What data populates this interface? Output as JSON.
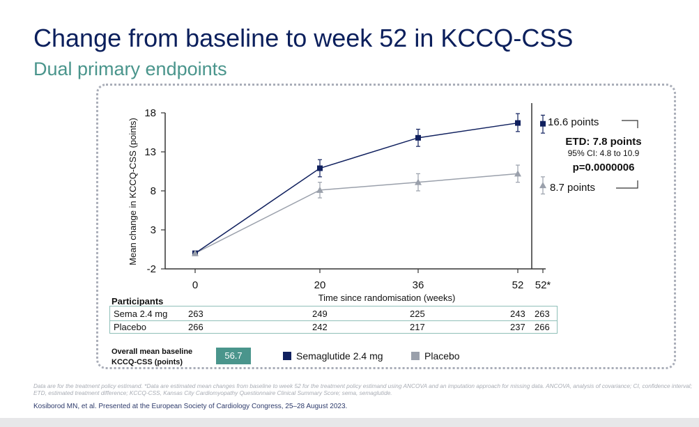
{
  "title": "Change from baseline to week 52 in KCCQ-CSS",
  "subtitle": "Dual primary endpoints",
  "chart_data": {
    "type": "line",
    "title": "Change from baseline to week 52 in KCCQ-CSS",
    "xlabel": "Time since randomisation (weeks)",
    "ylabel": "Mean change in KCCQ-CSS (points)",
    "x_ticks": [
      "0",
      "20",
      "36",
      "52",
      "52*"
    ],
    "y_ticks": [
      -2,
      3,
      8,
      13,
      18
    ],
    "ylim": [
      -2,
      18
    ],
    "x": [
      0,
      20,
      36,
      52
    ],
    "series": [
      {
        "name": "Semaglutide 2.4 mg",
        "color": "#10205e",
        "marker": "square",
        "values": [
          0,
          10.9,
          14.8,
          16.7
        ],
        "ci_low": [
          0,
          9.8,
          13.7,
          15.6
        ],
        "ci_high": [
          0,
          12.0,
          15.9,
          17.9
        ]
      },
      {
        "name": "Placebo",
        "color": "#9aa0ab",
        "marker": "triangle",
        "values": [
          0,
          8.1,
          9.1,
          10.2
        ],
        "ci_low": [
          0,
          7.1,
          8.0,
          9.1
        ],
        "ci_high": [
          0,
          9.1,
          10.2,
          11.3
        ]
      }
    ],
    "estimated_week52": [
      {
        "name": "Semaglutide 2.4 mg",
        "value": 16.6,
        "ci_low": 15.4,
        "ci_high": 17.7,
        "label": "16.6 points"
      },
      {
        "name": "Placebo",
        "value": 8.7,
        "ci_low": 7.6,
        "ci_high": 9.8,
        "label": "8.7 points"
      }
    ],
    "etd": {
      "label": "ETD: 7.8 points",
      "ci": "95% CI: 4.8 to 10.9",
      "p": "p=0.0000006"
    }
  },
  "participants": {
    "title": "Participants",
    "rows": [
      {
        "label": "Sema 2.4 mg",
        "values": [
          "263",
          "249",
          "225",
          "243",
          "263"
        ]
      },
      {
        "label": "Placebo",
        "values": [
          "266",
          "242",
          "217",
          "237",
          "266"
        ]
      }
    ]
  },
  "baseline": {
    "label_line1": "Overall mean baseline",
    "label_line2": "KCCQ-CSS (points)",
    "value": "56.7"
  },
  "legend": {
    "sema": "Semaglutide 2.4 mg",
    "placebo": "Placebo"
  },
  "footnote": "Data are for the treatment policy estimand. *Data are estimated mean changes from baseline to week 52 for the treatment policy estimand using ANCOVA and an imputation approach for missing data. ANCOVA, analysis of covariance; CI, confidence interval; ETD, estimated treatment difference; KCCQ-CSS, Kansas City Cardiomyopathy Questionnaire Clinical Summary Score; sema, semaglutide.",
  "reference": "Kosiborod MN, et al. Presented at the European Society of Cardiology Congress, 25–28 August 2023."
}
